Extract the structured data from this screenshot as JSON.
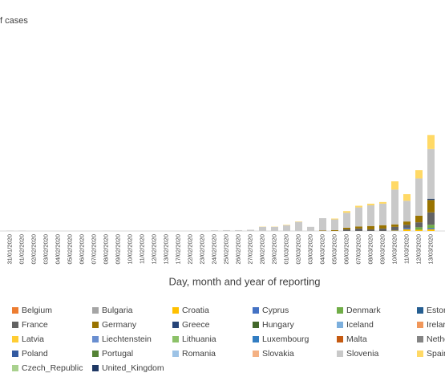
{
  "chart_data": {
    "type": "stacked_bar",
    "y_axis_label": "f cases",
    "x_axis_label": "Day, month and year of reporting",
    "categories": [
      "31/01/2020",
      "01/02/2020",
      "02/02/2020",
      "03/02/2020",
      "04/02/2020",
      "05/02/2020",
      "06/02/2020",
      "07/02/2020",
      "08/02/2020",
      "09/02/2020",
      "10/02/2020",
      "11/02/2020",
      "12/02/2020",
      "13/02/2020",
      "17/02/2020",
      "22/02/2020",
      "23/02/2020",
      "24/02/2020",
      "25/02/2020",
      "26/02/2020",
      "27/02/2020",
      "28/02/2020",
      "29/02/2020",
      "01/03/2020",
      "02/03/2020",
      "03/03/2020",
      "04/03/2020",
      "05/03/2020",
      "06/03/2020",
      "07/03/2020",
      "08/03/2020",
      "09/03/2020",
      "10/03/2020",
      "11/03/2020",
      "12/03/2020",
      "13/03/2020"
    ],
    "ylim": [
      0,
      2500
    ],
    "series": [
      {
        "name": "Belgium",
        "color": "#ed7d31",
        "values": [
          0,
          0,
          0,
          0,
          0,
          0,
          0,
          0,
          0,
          0,
          0,
          0,
          0,
          0,
          0,
          0,
          0,
          0,
          0,
          0,
          0,
          0,
          0,
          0,
          0,
          0,
          0,
          0,
          0,
          0,
          0,
          0,
          0,
          0,
          0,
          0
        ]
      },
      {
        "name": "Bulgaria",
        "color": "#a5a5a5",
        "values": [
          0,
          0,
          0,
          0,
          0,
          0,
          0,
          0,
          0,
          0,
          0,
          0,
          0,
          0,
          0,
          0,
          0,
          0,
          0,
          0,
          0,
          0,
          0,
          0,
          0,
          0,
          0,
          0,
          0,
          0,
          0,
          0,
          0,
          0,
          0,
          0
        ]
      },
      {
        "name": "Croatia",
        "color": "#ffc000",
        "values": [
          0,
          0,
          0,
          0,
          0,
          0,
          0,
          0,
          0,
          0,
          0,
          0,
          0,
          0,
          0,
          0,
          0,
          0,
          0,
          0,
          0,
          0,
          0,
          0,
          0,
          0,
          0,
          0,
          0,
          0,
          0,
          0,
          5,
          20,
          15,
          20
        ]
      },
      {
        "name": "Cyprus",
        "color": "#4472c4",
        "values": [
          0,
          0,
          0,
          0,
          0,
          0,
          0,
          0,
          0,
          0,
          0,
          0,
          0,
          0,
          0,
          0,
          0,
          0,
          0,
          0,
          0,
          0,
          0,
          0,
          0,
          0,
          0,
          0,
          0,
          0,
          0,
          0,
          5,
          15,
          0,
          15
        ]
      },
      {
        "name": "Denmark",
        "color": "#70ad47",
        "values": [
          0,
          0,
          0,
          0,
          0,
          0,
          0,
          0,
          0,
          0,
          0,
          0,
          0,
          0,
          0,
          0,
          0,
          0,
          0,
          0,
          0,
          0,
          0,
          0,
          0,
          0,
          0,
          0,
          0,
          0,
          0,
          0,
          0,
          0,
          30,
          40
        ]
      },
      {
        "name": "Eston",
        "color": "#255e91",
        "values": [
          0,
          0,
          0,
          0,
          0,
          0,
          0,
          0,
          0,
          0,
          0,
          0,
          0,
          0,
          0,
          0,
          0,
          0,
          0,
          0,
          0,
          0,
          0,
          0,
          0,
          0,
          0,
          0,
          0,
          0,
          0,
          0,
          0,
          0,
          0,
          0
        ]
      },
      {
        "name": "France",
        "color": "#636363",
        "values": [
          0,
          0,
          0,
          0,
          0,
          0,
          0,
          0,
          0,
          0,
          0,
          0,
          0,
          0,
          0,
          0,
          0,
          0,
          0,
          0,
          0,
          0,
          0,
          0,
          0,
          0,
          0,
          0,
          20,
          30,
          20,
          30,
          40,
          40,
          60,
          150
        ]
      },
      {
        "name": "Germany",
        "color": "#997300",
        "values": [
          0,
          0,
          0,
          0,
          0,
          0,
          0,
          0,
          0,
          0,
          0,
          0,
          0,
          0,
          0,
          0,
          0,
          0,
          0,
          0,
          0,
          0,
          0,
          0,
          0,
          0,
          5,
          10,
          20,
          25,
          40,
          40,
          30,
          40,
          80,
          150
        ]
      },
      {
        "name": "Greece",
        "color": "#264478",
        "values": [
          0,
          0,
          0,
          0,
          0,
          0,
          0,
          0,
          0,
          0,
          0,
          0,
          0,
          0,
          0,
          0,
          0,
          0,
          0,
          0,
          0,
          0,
          0,
          0,
          0,
          0,
          0,
          0,
          0,
          0,
          0,
          0,
          0,
          0,
          0,
          15
        ]
      },
      {
        "name": "Hungary",
        "color": "#43682b",
        "values": [
          0,
          0,
          0,
          0,
          0,
          0,
          0,
          0,
          0,
          0,
          0,
          0,
          0,
          0,
          0,
          0,
          0,
          0,
          0,
          0,
          0,
          0,
          0,
          0,
          0,
          0,
          0,
          0,
          0,
          0,
          0,
          0,
          0,
          0,
          0,
          0
        ]
      },
      {
        "name": "Iceland",
        "color": "#7cafdd",
        "values": [
          0,
          0,
          0,
          0,
          0,
          0,
          0,
          0,
          0,
          0,
          0,
          0,
          0,
          0,
          0,
          0,
          0,
          0,
          0,
          0,
          0,
          0,
          0,
          0,
          0,
          0,
          0,
          0,
          0,
          0,
          0,
          0,
          0,
          0,
          0,
          0
        ]
      },
      {
        "name": "Irelar",
        "color": "#f1975a",
        "values": [
          0,
          0,
          0,
          0,
          0,
          0,
          0,
          0,
          0,
          0,
          0,
          0,
          0,
          0,
          0,
          0,
          0,
          0,
          0,
          0,
          0,
          0,
          0,
          0,
          0,
          0,
          0,
          0,
          0,
          0,
          0,
          0,
          0,
          0,
          0,
          0
        ]
      },
      {
        "name": "Latvia",
        "color": "#ffcd33",
        "values": [
          0,
          0,
          0,
          0,
          0,
          0,
          0,
          0,
          0,
          0,
          0,
          0,
          0,
          0,
          0,
          0,
          0,
          0,
          0,
          0,
          0,
          0,
          0,
          0,
          0,
          0,
          0,
          0,
          0,
          0,
          0,
          0,
          0,
          0,
          0,
          0
        ]
      },
      {
        "name": "Liechtenstein",
        "color": "#698ed0",
        "values": [
          0,
          0,
          0,
          0,
          0,
          0,
          0,
          0,
          0,
          0,
          0,
          0,
          0,
          0,
          0,
          0,
          0,
          0,
          0,
          0,
          0,
          0,
          0,
          0,
          0,
          0,
          0,
          0,
          0,
          0,
          0,
          0,
          0,
          0,
          0,
          0
        ]
      },
      {
        "name": "Lithuania",
        "color": "#8cc168",
        "values": [
          0,
          0,
          0,
          0,
          0,
          0,
          0,
          0,
          0,
          0,
          0,
          0,
          0,
          0,
          0,
          0,
          0,
          0,
          0,
          0,
          0,
          0,
          0,
          0,
          0,
          0,
          0,
          0,
          0,
          0,
          0,
          0,
          0,
          0,
          0,
          0
        ]
      },
      {
        "name": "Luxembourg",
        "color": "#327dc2",
        "values": [
          0,
          0,
          0,
          0,
          0,
          0,
          0,
          0,
          0,
          0,
          0,
          0,
          0,
          0,
          0,
          0,
          0,
          0,
          0,
          0,
          0,
          0,
          0,
          0,
          0,
          0,
          0,
          0,
          0,
          0,
          0,
          0,
          0,
          0,
          0,
          0
        ]
      },
      {
        "name": "Malta",
        "color": "#c55a11",
        "values": [
          0,
          0,
          0,
          0,
          0,
          0,
          0,
          0,
          0,
          0,
          0,
          0,
          0,
          0,
          0,
          0,
          0,
          0,
          0,
          0,
          0,
          0,
          0,
          0,
          0,
          0,
          0,
          0,
          0,
          0,
          0,
          0,
          0,
          0,
          0,
          0
        ]
      },
      {
        "name": "Nethe",
        "color": "#848484",
        "values": [
          0,
          0,
          0,
          0,
          0,
          0,
          0,
          0,
          0,
          0,
          0,
          0,
          0,
          0,
          0,
          0,
          0,
          0,
          0,
          0,
          0,
          0,
          0,
          0,
          0,
          0,
          0,
          0,
          0,
          0,
          0,
          0,
          0,
          0,
          0,
          0
        ]
      },
      {
        "name": "Poland",
        "color": "#335aa1",
        "values": [
          0,
          0,
          0,
          0,
          0,
          0,
          0,
          0,
          0,
          0,
          0,
          0,
          0,
          0,
          0,
          0,
          0,
          0,
          0,
          0,
          0,
          0,
          0,
          0,
          0,
          0,
          0,
          0,
          0,
          0,
          0,
          0,
          0,
          0,
          0,
          0
        ]
      },
      {
        "name": "Portugal",
        "color": "#548235",
        "values": [
          0,
          0,
          0,
          0,
          0,
          0,
          0,
          0,
          0,
          0,
          0,
          0,
          0,
          0,
          0,
          0,
          0,
          0,
          0,
          0,
          0,
          0,
          0,
          0,
          0,
          0,
          0,
          0,
          0,
          0,
          0,
          0,
          0,
          0,
          0,
          0
        ]
      },
      {
        "name": "Romania",
        "color": "#9dc3e6",
        "values": [
          0,
          0,
          0,
          0,
          0,
          0,
          0,
          0,
          0,
          0,
          0,
          0,
          0,
          0,
          0,
          0,
          0,
          0,
          0,
          0,
          0,
          0,
          0,
          0,
          0,
          0,
          0,
          0,
          0,
          0,
          0,
          0,
          0,
          0,
          0,
          0
        ]
      },
      {
        "name": "Slovakia",
        "color": "#f4b183",
        "values": [
          0,
          0,
          0,
          0,
          0,
          0,
          0,
          0,
          0,
          0,
          0,
          0,
          0,
          0,
          0,
          0,
          0,
          0,
          0,
          0,
          0,
          0,
          0,
          0,
          0,
          0,
          0,
          0,
          0,
          0,
          0,
          0,
          0,
          0,
          0,
          0
        ]
      },
      {
        "name": "Slovenia",
        "color": "#c9c9c9",
        "values": [
          5,
          5,
          0,
          0,
          0,
          0,
          0,
          0,
          3,
          0,
          0,
          0,
          0,
          0,
          0,
          0,
          0,
          8,
          10,
          10,
          15,
          50,
          50,
          70,
          110,
          50,
          150,
          130,
          180,
          230,
          250,
          260,
          420,
          250,
          450,
          600
        ]
      },
      {
        "name": "Spain",
        "color": "#ffd966",
        "values": [
          0,
          0,
          0,
          0,
          0,
          0,
          0,
          0,
          0,
          0,
          0,
          0,
          0,
          0,
          0,
          0,
          0,
          0,
          0,
          0,
          0,
          3,
          3,
          5,
          5,
          0,
          0,
          10,
          20,
          20,
          20,
          20,
          100,
          80,
          100,
          170
        ]
      },
      {
        "name": "Czech_Republic",
        "color": "#a9d18e",
        "values": [
          0,
          0,
          0,
          0,
          0,
          0,
          0,
          0,
          0,
          0,
          0,
          0,
          0,
          0,
          0,
          0,
          0,
          0,
          0,
          0,
          0,
          0,
          0,
          0,
          0,
          0,
          0,
          0,
          0,
          0,
          0,
          0,
          0,
          0,
          0,
          0
        ]
      },
      {
        "name": "United_Kingdom",
        "color": "#1f3864",
        "values": [
          0,
          0,
          0,
          0,
          0,
          0,
          0,
          0,
          0,
          0,
          0,
          0,
          0,
          0,
          0,
          0,
          0,
          0,
          0,
          0,
          0,
          0,
          0,
          0,
          0,
          0,
          0,
          0,
          0,
          0,
          0,
          0,
          0,
          0,
          0,
          0
        ]
      }
    ]
  }
}
